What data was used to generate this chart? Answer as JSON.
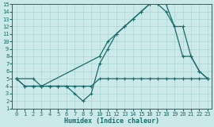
{
  "bg_color": "#cce9e9",
  "line_color": "#1a6b6b",
  "grid_color": "#aad4d4",
  "xlabel": "Humidex (Indice chaleur)",
  "xlim": [
    -0.5,
    23.5
  ],
  "ylim": [
    1,
    15
  ],
  "xticks": [
    0,
    1,
    2,
    3,
    4,
    5,
    6,
    7,
    8,
    9,
    10,
    11,
    12,
    13,
    14,
    15,
    16,
    17,
    18,
    19,
    20,
    21,
    22,
    23
  ],
  "yticks": [
    1,
    2,
    3,
    4,
    5,
    6,
    7,
    8,
    9,
    10,
    11,
    12,
    13,
    14,
    15
  ],
  "line_flat_x": [
    0,
    1,
    2,
    3,
    4,
    5,
    6,
    7,
    8,
    9,
    10,
    11,
    12,
    13,
    14,
    15,
    16,
    17,
    18,
    19,
    20,
    21,
    22,
    23
  ],
  "line_flat_y": [
    5,
    4,
    4,
    4,
    4,
    4,
    4,
    4,
    4,
    4,
    5,
    5,
    5,
    5,
    5,
    5,
    5,
    5,
    5,
    5,
    5,
    5,
    5,
    5
  ],
  "line_dip_x": [
    0,
    1,
    2,
    3,
    4,
    5,
    6,
    7,
    8,
    9,
    10,
    11,
    12,
    13,
    14,
    15,
    16,
    17,
    18,
    19,
    20,
    21,
    22,
    23
  ],
  "line_dip_y": [
    5,
    4,
    4,
    4,
    4,
    4,
    4,
    3,
    2,
    3,
    7,
    9,
    11,
    12,
    13,
    14,
    15,
    15,
    14,
    12,
    8,
    8,
    6,
    5
  ],
  "line_diag_x": [
    0,
    2,
    3,
    10,
    11,
    12,
    13,
    14,
    15,
    16,
    17,
    18,
    19,
    20,
    21,
    22,
    23
  ],
  "line_diag_y": [
    5,
    5,
    4,
    8,
    10,
    11,
    12,
    13,
    14,
    15,
    15,
    15,
    12,
    12,
    8,
    6,
    5
  ]
}
